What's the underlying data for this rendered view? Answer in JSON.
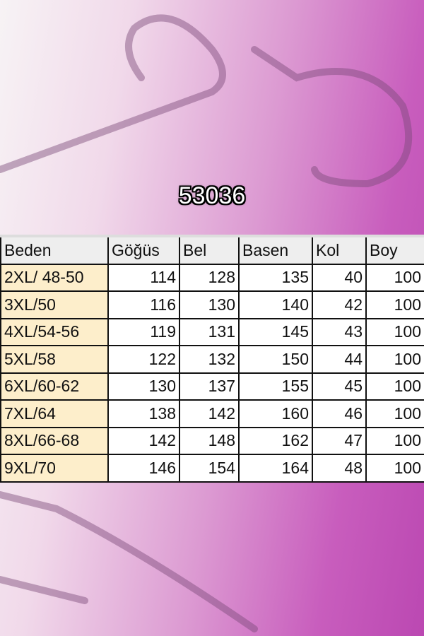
{
  "product_code": "53036",
  "colors": {
    "background_accent": "#bb48b2",
    "size_cell": "#fdeecb",
    "header_cell": "#eeeeee"
  },
  "table": {
    "headers": [
      "Beden",
      "Göğüs",
      "Bel",
      "Basen",
      "Kol",
      "Boy"
    ],
    "rows": [
      [
        "2XL/ 48-50",
        "114",
        "128",
        "135",
        "40",
        "100"
      ],
      [
        "3XL/50",
        "116",
        "130",
        "140",
        "42",
        "100"
      ],
      [
        "4XL/54-56",
        "119",
        "131",
        "145",
        "43",
        "100"
      ],
      [
        "5XL/58",
        "122",
        "132",
        "150",
        "44",
        "100"
      ],
      [
        "6XL/60-62",
        "130",
        "137",
        "155",
        "45",
        "100"
      ],
      [
        "7XL/64",
        "138",
        "142",
        "160",
        "46",
        "100"
      ],
      [
        "8XL/66-68",
        "142",
        "148",
        "162",
        "47",
        "100"
      ],
      [
        "9XL/70",
        "146",
        "154",
        "164",
        "48",
        "100"
      ]
    ]
  }
}
